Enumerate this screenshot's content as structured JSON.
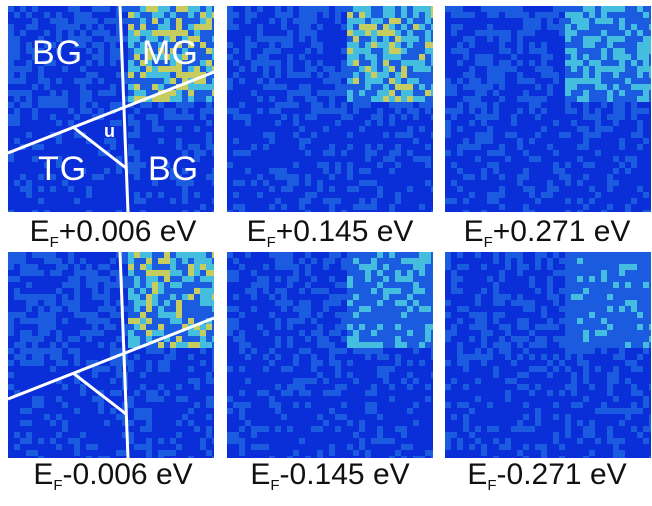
{
  "panels": [
    {
      "row": 0,
      "col": 0,
      "ef": "E",
      "sub": "F",
      "offset": "+0.006 eV",
      "intensity": 1.0,
      "lines": true
    },
    {
      "row": 0,
      "col": 1,
      "ef": "E",
      "sub": "F",
      "offset": "+0.145 eV",
      "intensity": 0.85,
      "lines": false
    },
    {
      "row": 0,
      "col": 2,
      "ef": "E",
      "sub": "F",
      "offset": "+0.271 eV",
      "intensity": 0.7,
      "lines": false
    },
    {
      "row": 1,
      "col": 0,
      "ef": "E",
      "sub": "F",
      "offset": "-0.006 eV",
      "intensity": 0.9,
      "lines": true
    },
    {
      "row": 1,
      "col": 1,
      "ef": "E",
      "sub": "F",
      "offset": "-0.145 eV",
      "intensity": 0.55,
      "lines": false
    },
    {
      "row": 1,
      "col": 2,
      "ef": "E",
      "sub": "F",
      "offset": "-0.271 eV",
      "intensity": 0.45,
      "lines": false
    }
  ],
  "region_labels": {
    "bg_top": "BG",
    "mg": "MG",
    "u": "u",
    "tg": "TG",
    "bg_bottom": "BG"
  },
  "colors": {
    "background_low": "#0a2fd8",
    "background_mid": "#1e63e0",
    "hot_cyan": "#4fd6e0",
    "hot_yellow": "#e8e84a",
    "line": "#ffffff"
  }
}
